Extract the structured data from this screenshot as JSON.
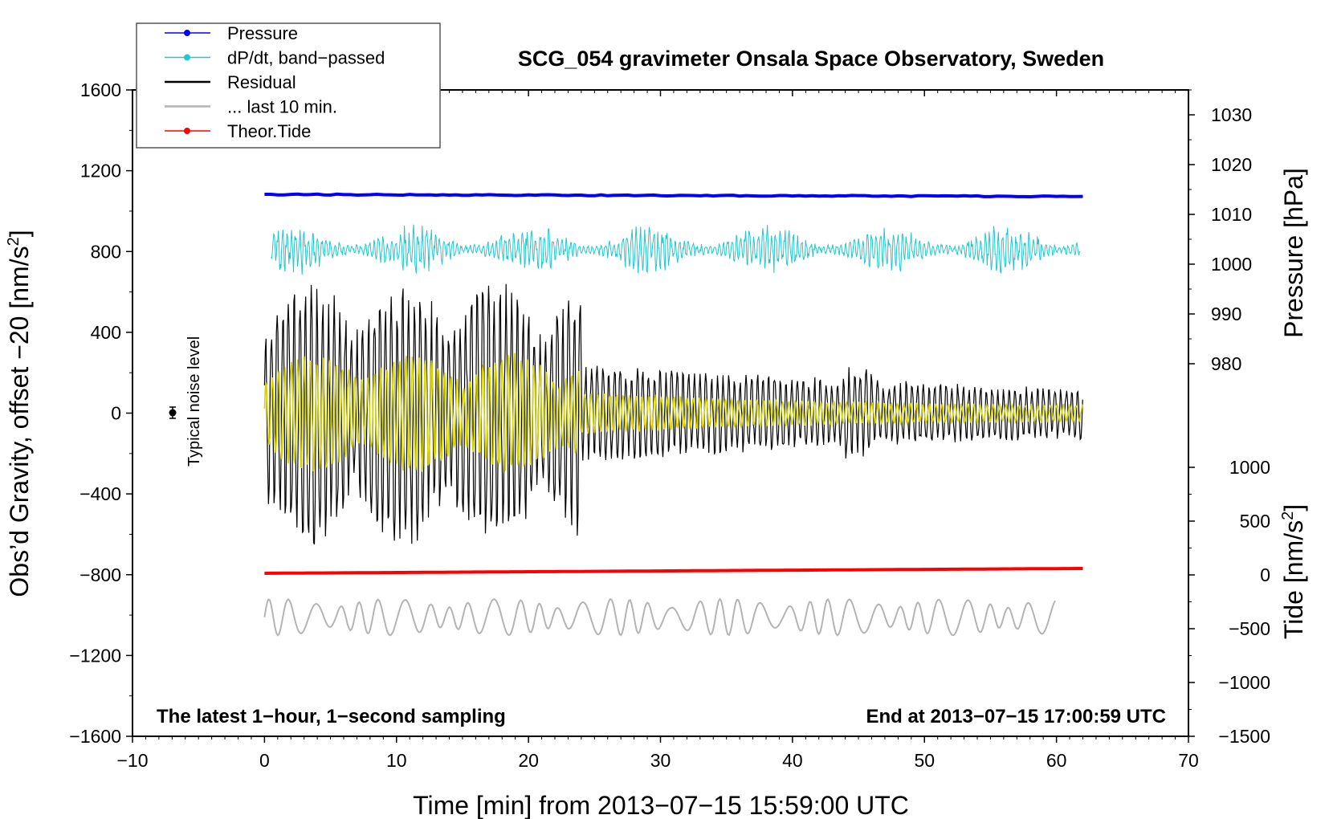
{
  "chart_data": {
    "type": "line",
    "title": "SCG_054 gravimeter Onsala Space Observatory, Sweden",
    "xlabel": "Time [min] from 2013−07−15 15:59:00 UTC",
    "ylabel_left": "Obs’d Gravity, offset −20 [nm/s",
    "ylabel_left_close": "]",
    "ylabel_pressure": "Pressure [hPa]",
    "ylabel_tide": "Tide [nm/s",
    "ylabel_tide_close": "]",
    "unit_sup": "2",
    "xlim": [
      -10,
      70
    ],
    "ylim": [
      -1600,
      1600
    ],
    "x_ticks": [
      "−10",
      "0",
      "10",
      "20",
      "30",
      "40",
      "50",
      "60",
      "70"
    ],
    "y_ticks": [
      "1600",
      "1200",
      "800",
      "400",
      "0",
      "−400",
      "−800",
      "−1200",
      "−1600"
    ],
    "pressure_ticks": [
      "1030",
      "1020",
      "1010",
      "1000",
      "990",
      "980"
    ],
    "tide_ticks": [
      "1000",
      "500",
      "0",
      "−500",
      "−1000",
      "−1500"
    ],
    "annotation_left": "The latest 1−hour, 1−second sampling",
    "annotation_right": "End at 2013−07−15 17:00:59 UTC",
    "noise_label": "Typical noise level",
    "legend": {
      "placement": "top-left",
      "entries": [
        {
          "label": "Pressure",
          "color": "#0000ff"
        },
        {
          "label": "dP/dt, band−passed",
          "color": "#20c8d0"
        },
        {
          "label": "Residual",
          "color": "#000000"
        },
        {
          "label": "... last 10 min.",
          "color": "#b4b4b4"
        },
        {
          "label": "Theor.Tide",
          "color": "#ff0000"
        }
      ]
    },
    "series": [
      {
        "name": "Pressure",
        "color": "#0000ff",
        "x": [
          0,
          62
        ],
        "y_hpa": [
          1014.0,
          1013.6
        ]
      },
      {
        "name": "dP/dt, band−passed",
        "color": "#20c8d0",
        "center": 810,
        "amplitude_approx": 130
      },
      {
        "name": "Residual",
        "color": "#000000",
        "center": 0,
        "amplitude_max_approx": 700
      },
      {
        "name": "... last 10 min.",
        "color": "#b4b4b4",
        "center": -1010,
        "amplitude_approx": 90
      },
      {
        "name": "Theor.Tide",
        "color": "#ff0000",
        "x": [
          0,
          62
        ],
        "y_tide": [
          15,
          60
        ]
      }
    ],
    "yellow_color": "#d2d200",
    "noise_point": {
      "x": -7,
      "y": 0
    }
  }
}
